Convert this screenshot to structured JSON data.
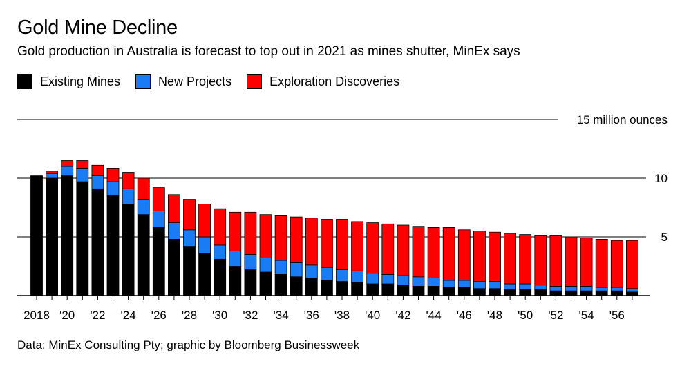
{
  "header": {
    "title": "Gold Mine Decline",
    "subtitle": "Gold production in Australia is forecast to top out in 2021 as mines shutter, MinEx says"
  },
  "legend": [
    {
      "label": "Existing Mines",
      "color": "#000000"
    },
    {
      "label": "New Projects",
      "color": "#1a7cf5"
    },
    {
      "label": "Exploration Discoveries",
      "color": "#ff0000"
    }
  ],
  "footer": {
    "source": "Data: MinEx Consulting Pty; graphic by Bloomberg Businessweek"
  },
  "chart_data": {
    "type": "bar",
    "stacked": true,
    "title": "Gold Mine Decline",
    "subtitle": "Gold production in Australia is forecast to top out in 2021 as mines shutter, MinEx says",
    "unit_label": "15 million ounces",
    "ylim": [
      0,
      15
    ],
    "yticks": [
      5,
      10,
      15
    ],
    "ytick_labels": [
      "5",
      "10",
      "15 million ounces"
    ],
    "x": [
      2018,
      2019,
      2020,
      2021,
      2022,
      2023,
      2024,
      2025,
      2026,
      2027,
      2028,
      2029,
      2030,
      2031,
      2032,
      2033,
      2034,
      2035,
      2036,
      2037,
      2038,
      2039,
      2040,
      2041,
      2042,
      2043,
      2044,
      2045,
      2046,
      2047,
      2048,
      2049,
      2050,
      2051,
      2052,
      2053,
      2054,
      2055,
      2056,
      2057
    ],
    "xtick_labels": [
      "2018",
      "'20",
      "'22",
      "'24",
      "'26",
      "'28",
      "'30",
      "'32",
      "'34",
      "'36",
      "'38",
      "'40",
      "'42",
      "'44",
      "'46",
      "'48",
      "'50",
      "'52",
      "'54",
      "'56"
    ],
    "xtick_years": [
      2018,
      2020,
      2022,
      2024,
      2026,
      2028,
      2030,
      2032,
      2034,
      2036,
      2038,
      2040,
      2042,
      2044,
      2046,
      2048,
      2050,
      2052,
      2054,
      2056
    ],
    "series": [
      {
        "name": "Existing Mines",
        "color": "#000000",
        "values": [
          10.2,
          10.0,
          10.2,
          9.7,
          9.1,
          8.5,
          7.8,
          6.9,
          5.8,
          4.8,
          4.2,
          3.6,
          3.1,
          2.5,
          2.2,
          2.0,
          1.8,
          1.6,
          1.5,
          1.3,
          1.2,
          1.1,
          1.0,
          1.0,
          0.9,
          0.8,
          0.8,
          0.7,
          0.7,
          0.6,
          0.6,
          0.5,
          0.5,
          0.5,
          0.4,
          0.4,
          0.4,
          0.4,
          0.4,
          0.3
        ]
      },
      {
        "name": "New Projects",
        "color": "#1a7cf5",
        "values": [
          0.0,
          0.4,
          0.8,
          1.1,
          1.1,
          1.2,
          1.3,
          1.3,
          1.4,
          1.4,
          1.4,
          1.4,
          1.2,
          1.3,
          1.3,
          1.2,
          1.2,
          1.2,
          1.1,
          1.1,
          1.0,
          1.0,
          0.9,
          0.8,
          0.8,
          0.8,
          0.7,
          0.6,
          0.6,
          0.6,
          0.6,
          0.5,
          0.5,
          0.4,
          0.4,
          0.4,
          0.4,
          0.3,
          0.3,
          0.3
        ]
      },
      {
        "name": "Exploration Discoveries",
        "color": "#ff0000",
        "values": [
          0.0,
          0.2,
          0.5,
          0.7,
          0.9,
          1.1,
          1.4,
          1.8,
          2.0,
          2.4,
          2.6,
          2.8,
          3.1,
          3.3,
          3.6,
          3.7,
          3.8,
          3.9,
          4.0,
          4.1,
          4.3,
          4.2,
          4.3,
          4.3,
          4.3,
          4.3,
          4.3,
          4.5,
          4.3,
          4.3,
          4.2,
          4.3,
          4.2,
          4.2,
          4.3,
          4.2,
          4.1,
          4.1,
          4.0,
          4.1
        ]
      }
    ]
  }
}
